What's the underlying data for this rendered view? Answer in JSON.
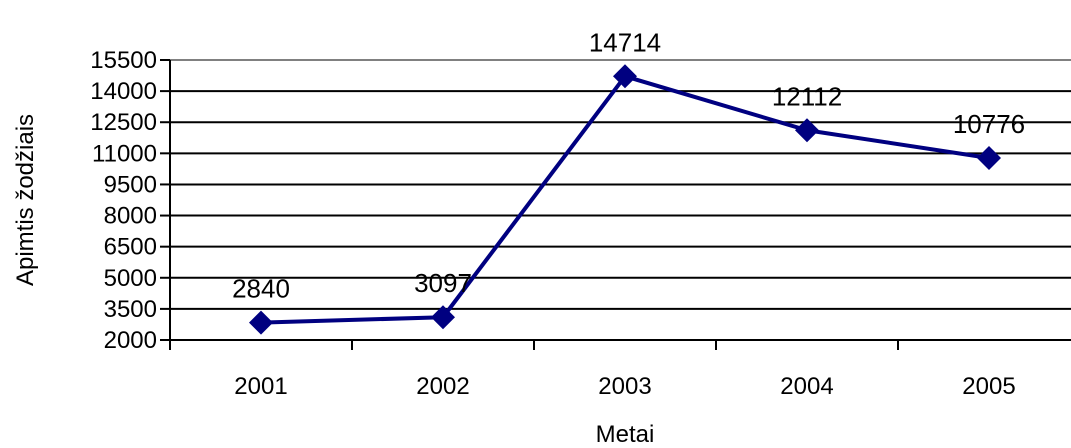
{
  "chart_data": {
    "type": "line",
    "x": [
      "2001",
      "2002",
      "2003",
      "2004",
      "2005"
    ],
    "series": [
      {
        "values": [
          2840,
          3097,
          14714,
          12112,
          10776
        ],
        "color": "#000080",
        "marker": "diamond"
      }
    ],
    "data_labels": [
      "2840",
      "3097",
      "14714",
      "12112",
      "10776"
    ],
    "xlabel": "Metai",
    "ylabel": "Apimtis žodžiais",
    "ylim": [
      2000,
      15500
    ],
    "yticks": [
      2000,
      3500,
      5000,
      6500,
      8000,
      9500,
      11000,
      12500,
      14000,
      15500
    ],
    "ytick_labels": [
      "2000",
      "3500",
      "5000",
      "6500",
      "8000",
      "9500",
      "11000",
      "12500",
      "14000",
      "15500"
    ],
    "grid": true,
    "legend": "none"
  }
}
